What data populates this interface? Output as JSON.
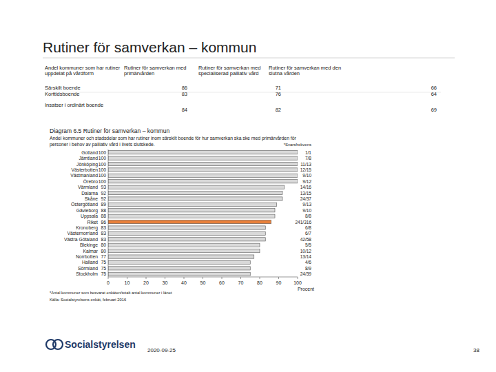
{
  "header": {
    "title": "Rutiner för samverkan – kommun"
  },
  "table": {
    "columns": [
      "Andel kommuner som har rutiner uppdelat på vårdform",
      "Rutiner för samverkan med primärvården",
      "Rutiner för samverkan med specialiserad palliativ vård",
      "Rutiner för samverkan med den slutna vården"
    ],
    "rows": [
      [
        "Särskilt boende",
        "86",
        "71",
        "66"
      ],
      [
        "Korttidsboende",
        "83",
        "76",
        "64"
      ],
      [
        "Insatser i ordinärt boende",
        "84",
        "82",
        "69"
      ]
    ]
  },
  "chart_data": {
    "type": "bar",
    "orientation": "horizontal",
    "title": "Diagram 6.5 Rutiner för samverkan – kommun",
    "subtitle": "Andel kommuner och stadsdelar som har rutiner inom särskilt boende för hur samverkan ska ske med primärvården för personer i behov av palliativ vård i livets slutskede.",
    "categories": [
      "Gotland",
      "Jämtland",
      "Jönköping",
      "Västerbotten",
      "Västmanland",
      "Örebro",
      "Värmland",
      "Dalarna",
      "Skåne",
      "Östergötland",
      "Gävleborg",
      "Uppsala",
      "Riket",
      "Kronoberg",
      "Västernorrland",
      "Västra Götaland",
      "Blekinge",
      "Kalmar",
      "Norrbotten",
      "Halland",
      "Sörmland",
      "Stockholm"
    ],
    "values": [
      100,
      100,
      100,
      100,
      100,
      100,
      93,
      92,
      92,
      89,
      88,
      88,
      86,
      83,
      83,
      83,
      80,
      80,
      77,
      75,
      75,
      75
    ],
    "colors": [
      "#d9d9d9",
      "#d9d9d9",
      "#d9d9d9",
      "#d9d9d9",
      "#d9d9d9",
      "#d9d9d9",
      "#d9d9d9",
      "#d9d9d9",
      "#d9d9d9",
      "#d9d9d9",
      "#d9d9d9",
      "#d9d9d9",
      "#e8803a",
      "#d9d9d9",
      "#d9d9d9",
      "#d9d9d9",
      "#d9d9d9",
      "#d9d9d9",
      "#d9d9d9",
      "#d9d9d9",
      "#d9d9d9",
      "#d9d9d9"
    ],
    "data_labels": true,
    "response_rate_label": "*Svarsfrekvens",
    "response_rates": [
      "1/1",
      "7/8",
      "11/13",
      "12/15",
      "9/10",
      "9/12",
      "14/16",
      "13/15",
      "24/37",
      "9/13",
      "9/10",
      "8/8",
      "241/316",
      "6/8",
      "6/7",
      "42/58",
      "5/5",
      "10/12",
      "13/14",
      "4/6",
      "8/9",
      "24/39"
    ],
    "xlim": [
      0,
      100
    ],
    "xticks": [
      0,
      10,
      20,
      30,
      40,
      50,
      60,
      70,
      80,
      90,
      100
    ],
    "x_label": "Procent",
    "grid": false,
    "footnote": "*Antal kommuner som besvarat enkäten/totalt antal kommuner i länet",
    "source": "Källa: Socialstyrelsens enkät, februari 2016"
  },
  "footer": {
    "logo": "Socialstyrelsen",
    "date": "2020-09-25",
    "page": "38"
  }
}
